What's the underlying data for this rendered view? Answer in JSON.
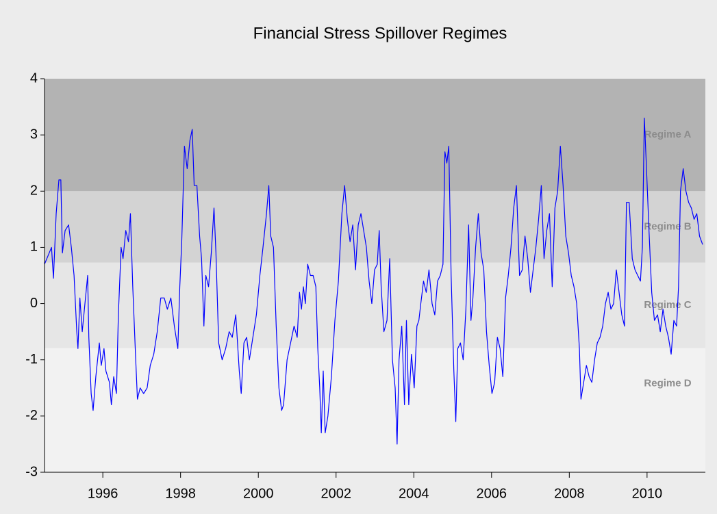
{
  "chart_data": {
    "type": "line",
    "title": "Financial Stress Spillover Regimes",
    "xlim": [
      1994.5,
      2011.5
    ],
    "xticks": [
      1996,
      1998,
      2000,
      2002,
      2004,
      2006,
      2008,
      2010
    ],
    "ylim": [
      -3,
      4
    ],
    "yticks": [
      -3,
      -2,
      -1,
      0,
      1,
      2,
      3,
      4
    ],
    "color": "#0000ff",
    "bands": [
      {
        "label": "Regime A",
        "from": 2,
        "to": 4,
        "color": "#b3b3b3"
      },
      {
        "label": "Regime B",
        "from": 0.73,
        "to": 2,
        "color": "#d3d3d3"
      },
      {
        "label": "Regime C",
        "from": -0.79,
        "to": 0.73,
        "color": "#e6e6e6"
      },
      {
        "label": "Regime D",
        "from": -3,
        "to": -0.79,
        "color": "#f2f2f2"
      }
    ],
    "x": [
      1994.5,
      1994.68,
      1994.73,
      1994.8,
      1994.87,
      1994.92,
      1994.96,
      1995.03,
      1995.12,
      1995.19,
      1995.26,
      1995.33,
      1995.36,
      1995.41,
      1995.47,
      1995.54,
      1995.61,
      1995.64,
      1995.7,
      1995.75,
      1995.82,
      1995.91,
      1995.96,
      1996.03,
      1996.08,
      1996.17,
      1996.22,
      1996.28,
      1996.35,
      1996.4,
      1996.47,
      1996.52,
      1996.59,
      1996.66,
      1996.71,
      1996.77,
      1996.84,
      1996.89,
      1996.96,
      1997.05,
      1997.14,
      1997.22,
      1997.31,
      1997.4,
      1997.49,
      1997.58,
      1997.66,
      1997.75,
      1997.84,
      1997.93,
      1997.98,
      1998.03,
      1998.1,
      1998.17,
      1998.24,
      1998.3,
      1998.35,
      1998.42,
      1998.49,
      1998.54,
      1998.6,
      1998.65,
      1998.72,
      1998.79,
      1998.86,
      1998.91,
      1998.98,
      1999.07,
      1999.16,
      1999.25,
      1999.33,
      1999.42,
      1999.51,
      1999.56,
      1999.63,
      1999.7,
      1999.77,
      1999.86,
      1999.95,
      2000.04,
      2000.12,
      2000.21,
      2000.27,
      2000.32,
      2000.39,
      2000.46,
      2000.53,
      2000.6,
      2000.65,
      2000.74,
      2000.83,
      2000.92,
      2001.0,
      2001.06,
      2001.11,
      2001.16,
      2001.21,
      2001.27,
      2001.34,
      2001.41,
      2001.48,
      2001.53,
      2001.58,
      2001.62,
      2001.67,
      2001.72,
      2001.79,
      2001.88,
      2001.97,
      2002.06,
      2002.15,
      2002.22,
      2002.29,
      2002.36,
      2002.43,
      2002.5,
      2002.57,
      2002.64,
      2002.71,
      2002.78,
      2002.85,
      2002.92,
      2002.99,
      2003.06,
      2003.11,
      2003.16,
      2003.23,
      2003.31,
      2003.38,
      2003.45,
      2003.52,
      2003.57,
      2003.62,
      2003.69,
      2003.76,
      2003.81,
      2003.87,
      2003.94,
      2004.01,
      2004.08,
      2004.13,
      2004.18,
      2004.25,
      2004.32,
      2004.39,
      2004.47,
      2004.54,
      2004.61,
      2004.68,
      2004.75,
      2004.8,
      2004.85,
      2004.9,
      2004.96,
      2005.03,
      2005.08,
      2005.13,
      2005.2,
      2005.27,
      2005.34,
      2005.41,
      2005.47,
      2005.52,
      2005.59,
      2005.66,
      2005.73,
      2005.8,
      2005.87,
      2005.94,
      2006.01,
      2006.08,
      2006.15,
      2006.22,
      2006.29,
      2006.36,
      2006.43,
      2006.5,
      2006.57,
      2006.64,
      2006.72,
      2006.79,
      2006.86,
      2006.93,
      2007.0,
      2007.07,
      2007.14,
      2007.21,
      2007.28,
      2007.35,
      2007.42,
      2007.49,
      2007.56,
      2007.63,
      2007.7,
      2007.77,
      2007.84,
      2007.91,
      2007.98,
      2008.05,
      2008.12,
      2008.19,
      2008.26,
      2008.3,
      2008.37,
      2008.44,
      2008.51,
      2008.58,
      2008.65,
      2008.72,
      2008.79,
      2008.86,
      2008.93,
      2009.0,
      2009.07,
      2009.14,
      2009.21,
      2009.28,
      2009.35,
      2009.42,
      2009.47,
      2009.54,
      2009.62,
      2009.69,
      2009.76,
      2009.83,
      2009.88,
      2009.93,
      2009.98,
      2010.05,
      2010.12,
      2010.19,
      2010.27,
      2010.34,
      2010.41,
      2010.48,
      2010.55,
      2010.62,
      2010.69,
      2010.76,
      2010.81,
      2010.86,
      2010.93,
      2011.0,
      2011.07,
      2011.14,
      2011.21,
      2011.28,
      2011.35,
      2011.43
    ],
    "values": [
      0.7,
      1.0,
      0.45,
      1.6,
      2.2,
      2.2,
      0.9,
      1.3,
      1.4,
      1.0,
      0.5,
      -0.5,
      -0.8,
      0.1,
      -0.5,
      0.0,
      0.5,
      -0.6,
      -1.6,
      -1.9,
      -1.3,
      -0.7,
      -1.1,
      -0.8,
      -1.2,
      -1.4,
      -1.8,
      -1.3,
      -1.6,
      -0.2,
      1.0,
      0.8,
      1.3,
      1.1,
      1.6,
      0.3,
      -0.9,
      -1.7,
      -1.5,
      -1.6,
      -1.5,
      -1.1,
      -0.9,
      -0.5,
      0.1,
      0.1,
      -0.1,
      0.1,
      -0.4,
      -0.8,
      0.3,
      1.1,
      2.8,
      2.4,
      2.9,
      3.1,
      2.1,
      2.1,
      1.2,
      0.8,
      -0.4,
      0.5,
      0.3,
      0.9,
      1.7,
      0.9,
      -0.7,
      -1.0,
      -0.8,
      -0.5,
      -0.6,
      -0.2,
      -1.2,
      -1.6,
      -0.7,
      -0.6,
      -1.0,
      -0.6,
      -0.2,
      0.5,
      1.0,
      1.6,
      2.1,
      1.2,
      1.0,
      -0.4,
      -1.5,
      -1.9,
      -1.8,
      -1.0,
      -0.7,
      -0.4,
      -0.6,
      0.2,
      -0.1,
      0.3,
      0.0,
      0.7,
      0.5,
      0.5,
      0.3,
      -0.8,
      -1.5,
      -2.3,
      -1.2,
      -2.3,
      -2.0,
      -1.3,
      -0.3,
      0.4,
      1.6,
      2.1,
      1.5,
      1.1,
      1.4,
      0.6,
      1.4,
      1.6,
      1.3,
      1.0,
      0.4,
      0.0,
      0.6,
      0.7,
      1.3,
      0.3,
      -0.5,
      -0.3,
      0.8,
      -1.0,
      -1.5,
      -2.5,
      -1.0,
      -0.4,
      -1.8,
      -0.3,
      -1.8,
      -0.9,
      -1.5,
      -0.4,
      -0.3,
      0.0,
      0.4,
      0.2,
      0.6,
      0.0,
      -0.2,
      0.4,
      0.5,
      0.7,
      2.7,
      2.5,
      2.8,
      0.5,
      -1.2,
      -2.1,
      -0.8,
      -0.7,
      -1.0,
      -0.1,
      1.4,
      -0.3,
      0.1,
      1.0,
      1.6,
      0.9,
      0.6,
      -0.5,
      -1.1,
      -1.6,
      -1.4,
      -0.6,
      -0.8,
      -1.3,
      0.1,
      0.5,
      1.0,
      1.7,
      2.1,
      0.5,
      0.6,
      1.2,
      0.8,
      0.2,
      0.6,
      1.0,
      1.5,
      2.1,
      0.8,
      1.3,
      1.6,
      0.3,
      1.7,
      2.0,
      2.8,
      2.1,
      1.2,
      0.9,
      0.5,
      0.3,
      0.0,
      -0.8,
      -1.7,
      -1.4,
      -1.1,
      -1.3,
      -1.4,
      -1.0,
      -0.7,
      -0.6,
      -0.4,
      0.0,
      0.2,
      -0.1,
      0.0,
      0.6,
      0.2,
      -0.2,
      -0.4,
      1.8,
      1.8,
      0.8,
      0.6,
      0.5,
      0.4,
      1.0,
      3.3,
      2.5,
      1.3,
      0.2,
      -0.3,
      -0.2,
      -0.5,
      -0.1,
      -0.4,
      -0.6,
      -0.9,
      -0.3,
      -0.4,
      0.3,
      2.0,
      2.4,
      2.0,
      1.8,
      1.7,
      1.5,
      1.6,
      1.2,
      1.05
    ]
  }
}
